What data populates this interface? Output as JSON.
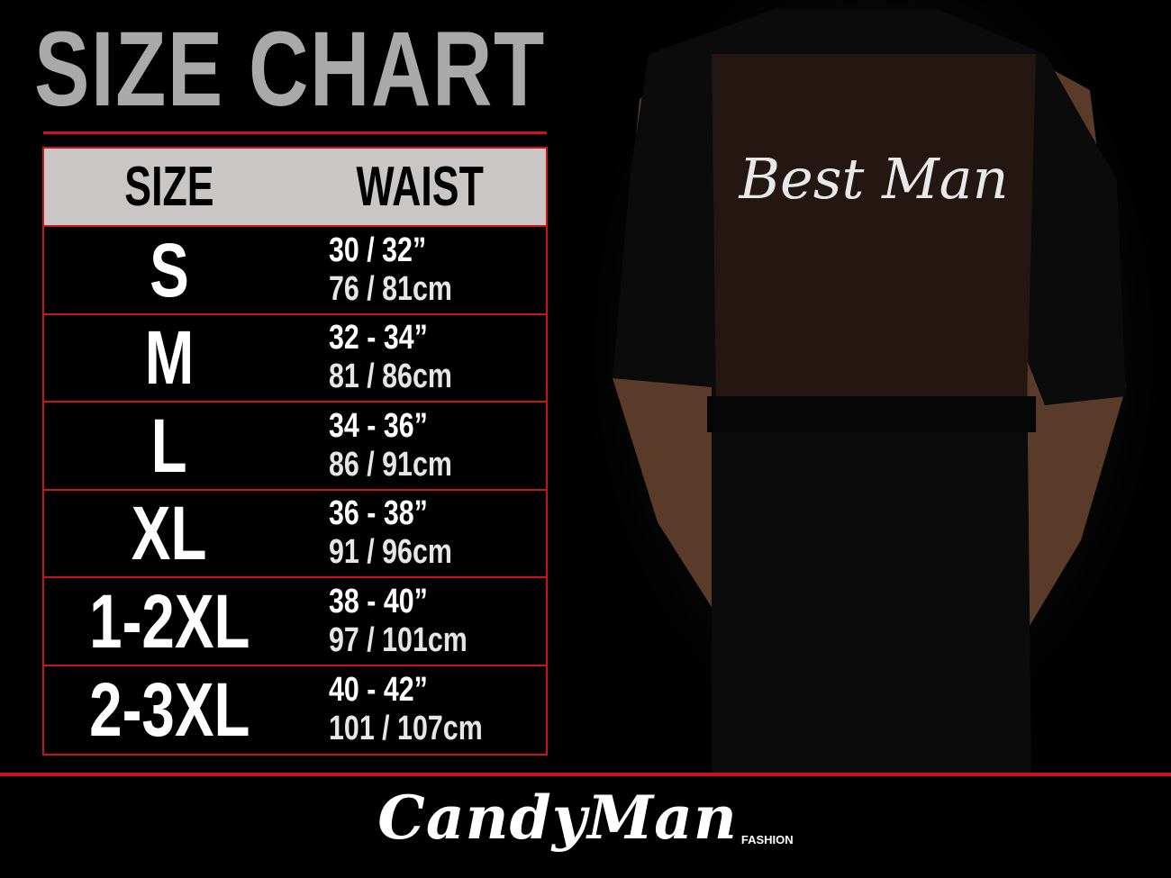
{
  "title": "SIZE CHART",
  "table": {
    "headers": [
      "SIZE",
      "WAIST"
    ],
    "rows": [
      {
        "size": "S",
        "inches": "30 / 32”",
        "cm": "76 / 81cm"
      },
      {
        "size": "M",
        "inches": "32 - 34”",
        "cm": "81 / 86cm"
      },
      {
        "size": "L",
        "inches": "34 - 36”",
        "cm": "86 / 91cm"
      },
      {
        "size": "XL",
        "inches": "36 - 38”",
        "cm": "91 / 96cm"
      },
      {
        "size": "1-2XL",
        "inches": "38 - 40”",
        "cm": "97 / 101cm"
      },
      {
        "size": "2-3XL",
        "inches": "40 - 42”",
        "cm": "101 / 107cm"
      }
    ]
  },
  "product": {
    "print_text": "Best Man"
  },
  "brand": {
    "name": "CandyMan",
    "sub": "FASHION"
  },
  "colors": {
    "accent": "#d0131a",
    "header_bg": "#cbc6c6",
    "title": "#a9a9a9"
  }
}
